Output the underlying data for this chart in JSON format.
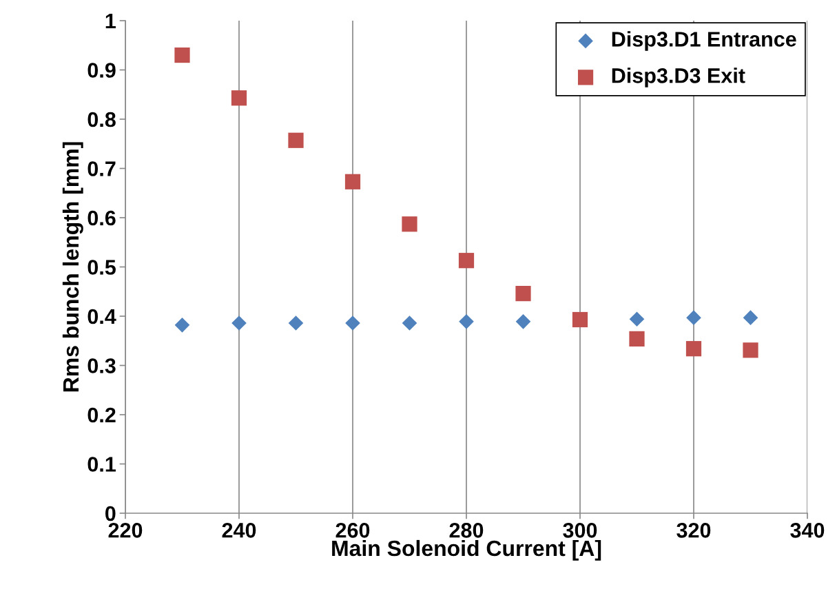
{
  "chart_data": {
    "type": "scatter",
    "xlabel": "Main Solenoid Current [A]",
    "ylabel": "Rms bunch length [mm]",
    "x": [
      230,
      240,
      250,
      260,
      270,
      280,
      290,
      300,
      310,
      320,
      330
    ],
    "series": [
      {
        "name": "Disp3.D1 Entrance",
        "color": "#4f81bd",
        "marker": "diamond",
        "values": [
          0.382,
          0.386,
          0.386,
          0.386,
          0.386,
          0.389,
          0.389,
          null,
          0.394,
          0.397,
          0.397
        ]
      },
      {
        "name": "Disp3.D3 Exit",
        "color": "#c0504d",
        "marker": "square",
        "values": [
          0.93,
          0.843,
          0.757,
          0.673,
          0.587,
          0.513,
          0.446,
          0.393,
          0.354,
          0.334,
          0.331
        ]
      }
    ],
    "xlim": [
      220,
      340
    ],
    "xticks": [
      220,
      240,
      260,
      280,
      300,
      320,
      340
    ],
    "ylim": [
      0,
      1
    ],
    "yticks": [
      0,
      0.1,
      0.2,
      0.3,
      0.4,
      0.5,
      0.6,
      0.7,
      0.8,
      0.9,
      1
    ],
    "grid": "x",
    "legend": "top right"
  }
}
